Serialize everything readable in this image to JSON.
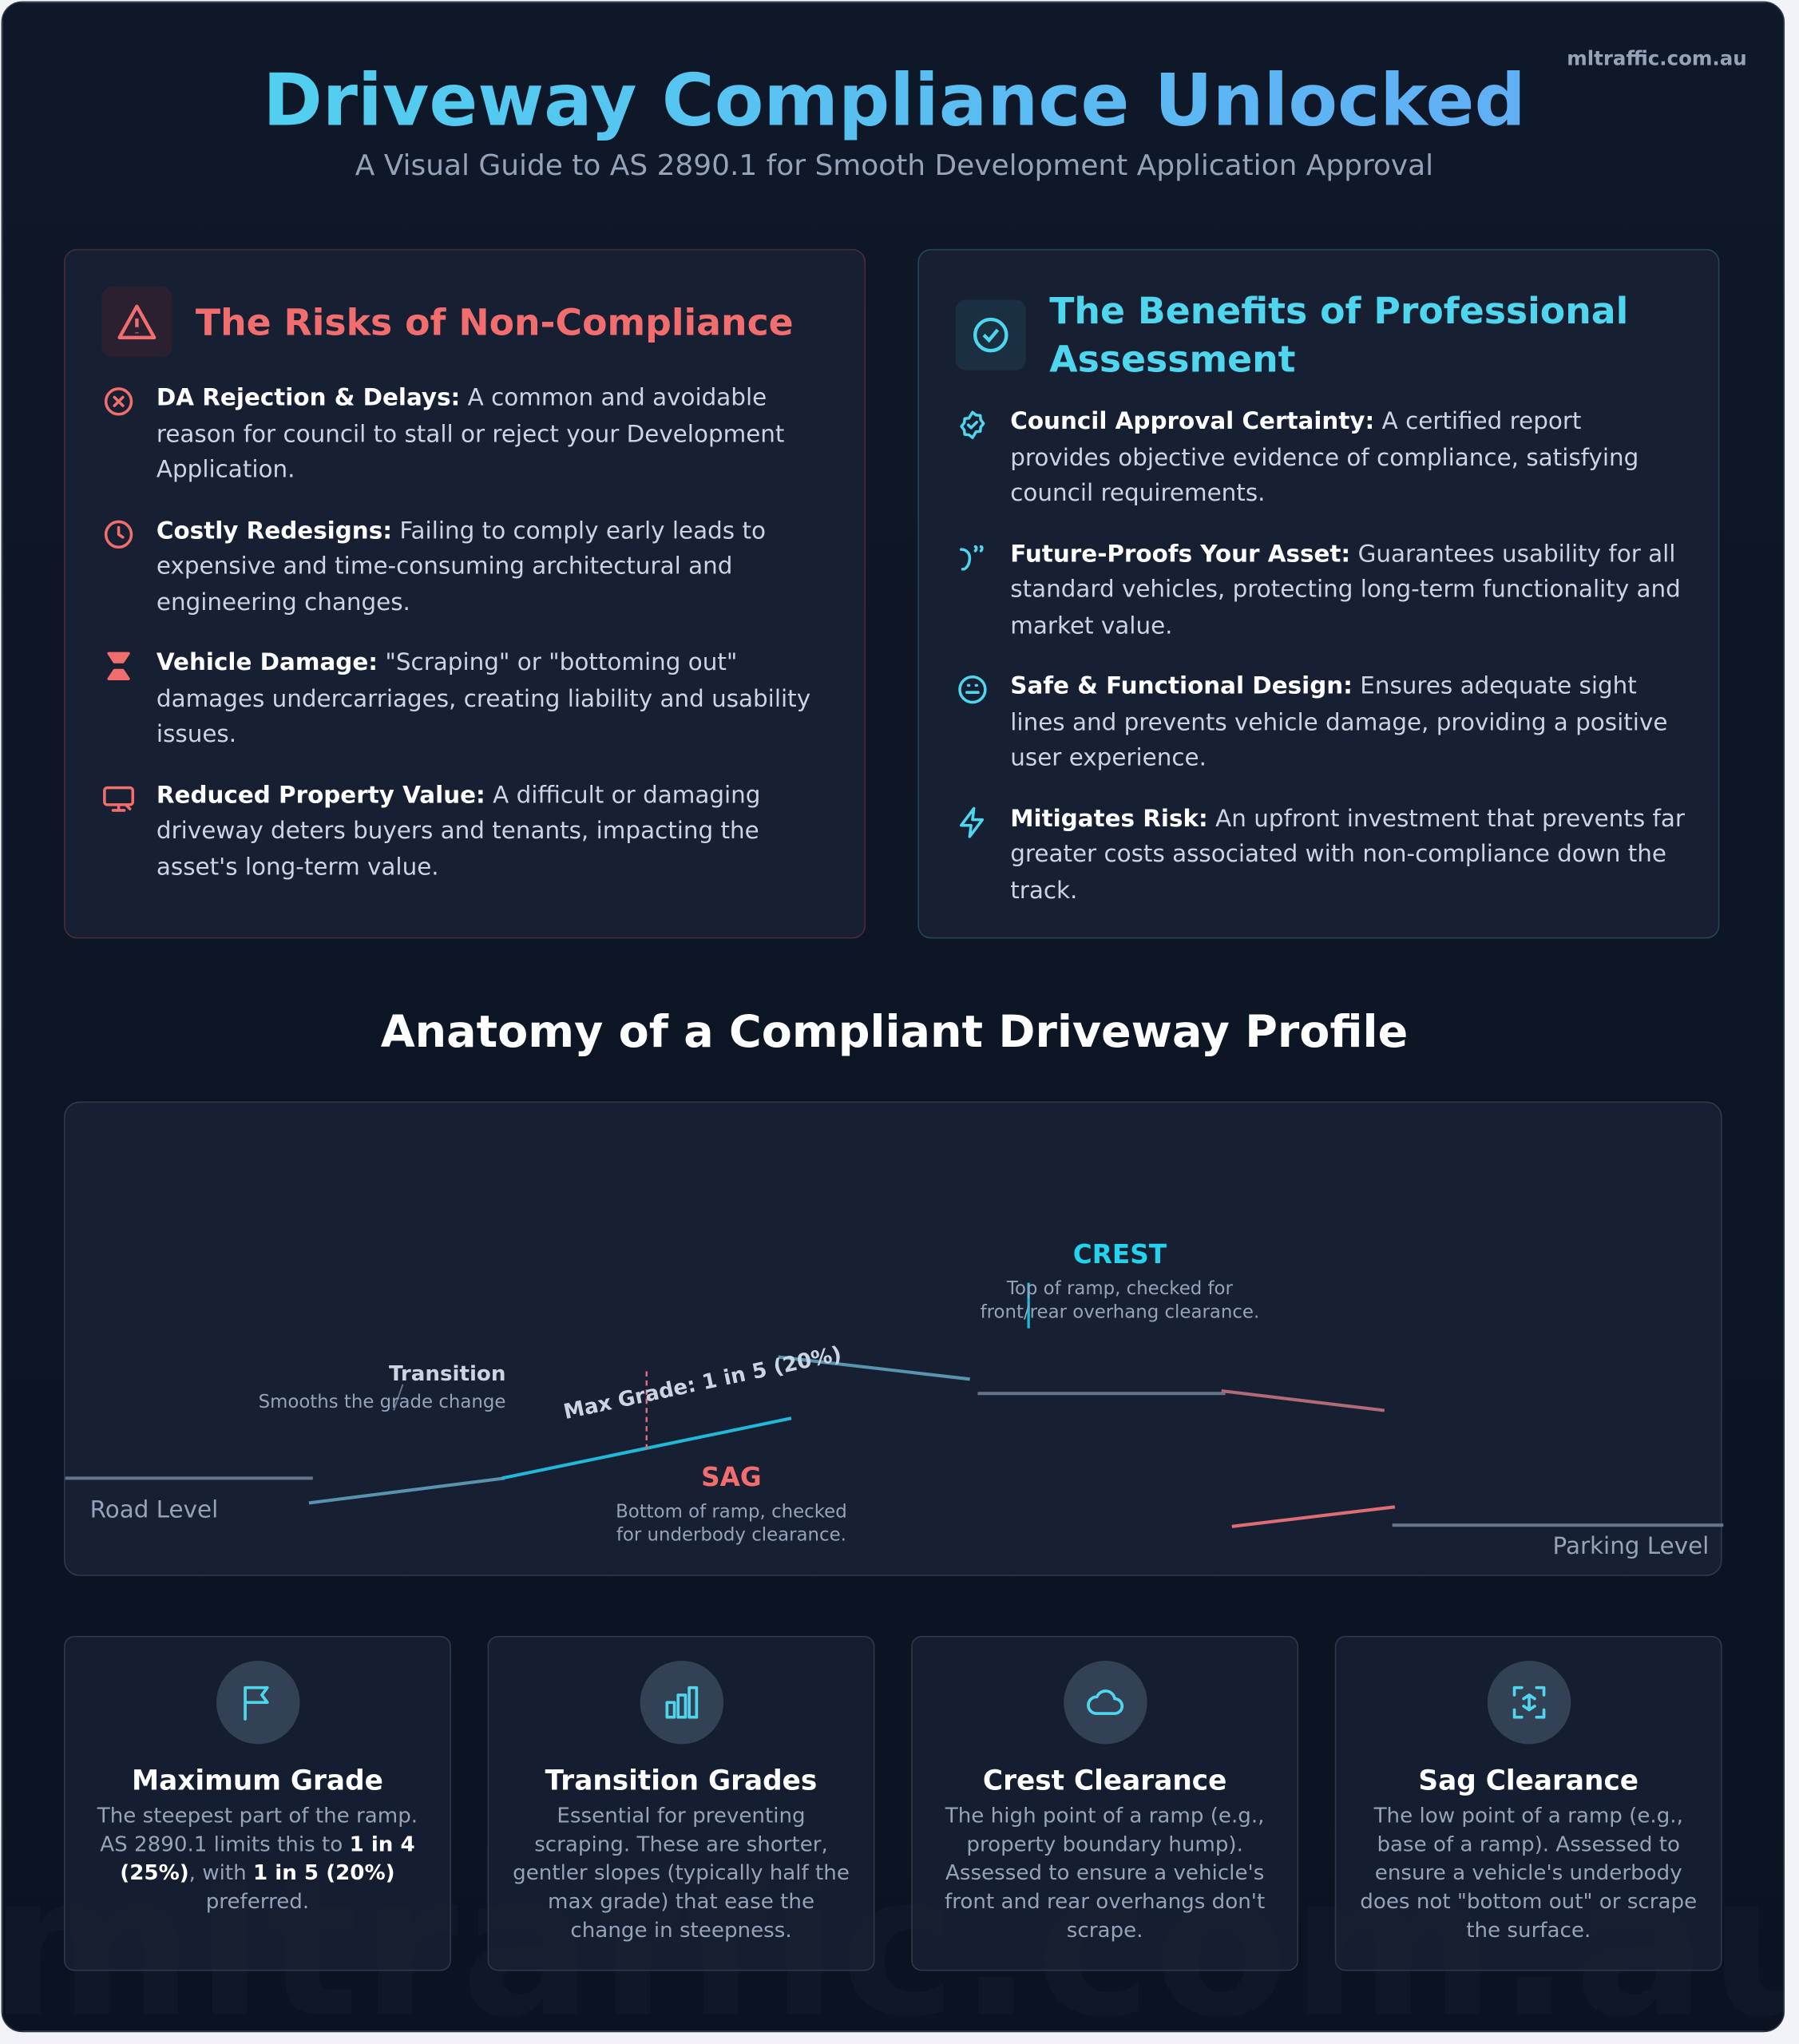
{
  "header": {
    "title": "Driveway Compliance Unlocked",
    "subtitle": "A Visual Guide to AS 2890.1 for Smooth Development Application Approval",
    "site": "mltraffic.com.au"
  },
  "risks": {
    "title": "The Risks of Non-Compliance",
    "items": [
      {
        "title": "DA Rejection & Delays:",
        "text": "A common and avoidable reason for council to stall or reject your Development Application."
      },
      {
        "title": "Costly Redesigns:",
        "text": "Failing to comply early leads to expensive and time-consuming architectural and engineering changes."
      },
      {
        "title": "Vehicle Damage:",
        "text": "\"Scraping\" or \"bottoming out\" damages undercarriages, creating liability and usability issues."
      },
      {
        "title": "Reduced Property Value:",
        "text": "A difficult or damaging driveway deters buyers and tenants, impacting the asset's long-term value."
      }
    ]
  },
  "benefits": {
    "title": "The Benefits of Professional Assessment",
    "items": [
      {
        "title": "Council Approval Certainty:",
        "text": "A certified report provides objective evidence of compliance, satisfying council requirements."
      },
      {
        "title": "Future-Proofs Your Asset:",
        "text": "Guarantees usability for all standard vehicles, protecting long-term functionality and market value."
      },
      {
        "title": "Safe & Functional Design:",
        "text": "Ensures adequate sight lines and prevents vehicle damage, providing a positive user experience."
      },
      {
        "title": "Mitigates Risk:",
        "text": "An upfront investment that prevents far greater costs associated with non-compliance down the track."
      }
    ]
  },
  "anatomy": {
    "title": "Anatomy of a Compliant Driveway Profile",
    "road_level": "Road Level",
    "parking_level": "Parking Level",
    "transition": {
      "label": "Transition",
      "note": "Smooths the grade change"
    },
    "max_grade": "Max Grade: 1 in 5 (20%)",
    "sag": {
      "label": "SAG",
      "note": [
        "Bottom of ramp, checked",
        "for underbody clearance."
      ]
    },
    "crest": {
      "label": "CREST",
      "note": [
        "Top of ramp, checked for",
        "front/rear overhang clearance."
      ]
    }
  },
  "cards": [
    {
      "title": "Maximum Grade",
      "text": [
        "The steepest part of the ramp. AS 2890.1 limits this to ",
        "1 in 4 (25%)",
        ", with ",
        "1 in 5 (20%)",
        " preferred."
      ]
    },
    {
      "title": "Transition Grades",
      "text": [
        "Essential for preventing scraping. These are shorter, gentler slopes (typically half the max grade) that ease the change in steepness."
      ]
    },
    {
      "title": "Crest Clearance",
      "text": [
        "The high point of a ramp (e.g., property boundary hump). Assessed to ensure a vehicle's front and rear overhangs don't scrape."
      ]
    },
    {
      "title": "Sag Clearance",
      "text": [
        "The low point of a ramp (e.g., base of a ramp). Assessed to ensure a vehicle's underbody does not \"bottom out\" or scrape the surface."
      ]
    }
  ],
  "watermark": "mltraffic.com.au"
}
